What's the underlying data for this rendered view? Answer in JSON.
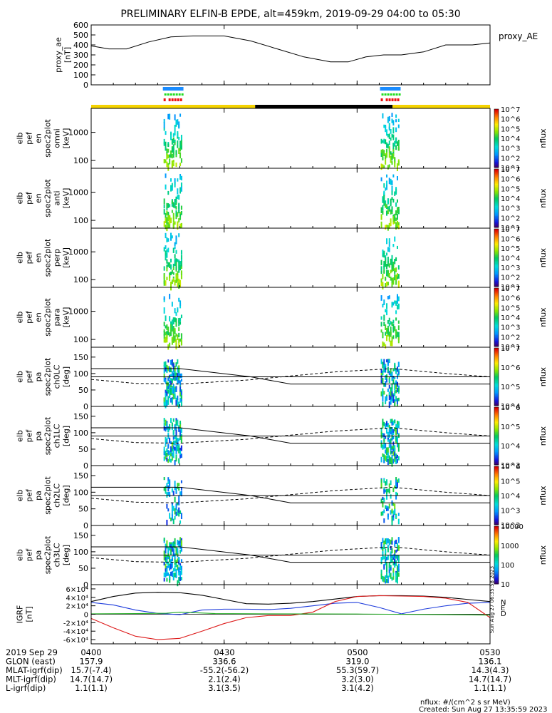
{
  "title": "PRELIMINARY ELFIN-B EPDE, alt=459km, 2019-09-29 04:00 to 05:30",
  "time_axis": {
    "start": "04:00",
    "end": "05:30",
    "tick_labels": [
      "0400",
      "0430",
      "0500",
      "0530"
    ],
    "tick_minutes": [
      0,
      30,
      60,
      90
    ]
  },
  "colors": {
    "flag_blue": "#1a8cff",
    "flag_green": "#22dd22",
    "flag_red": "#ee1111",
    "sunlit": "#f5d300",
    "shadow": "#000000",
    "dipole": "#000000",
    "east": "#1e3cdc",
    "down": "#dd1a1a",
    "north_h": "#22aa22"
  },
  "chart_data": [
    {
      "type": "line",
      "panel": "proxy_ae",
      "ylabel": [
        "proxy_ae",
        "[nT]"
      ],
      "right_label": "proxy_AE",
      "ylim": [
        0,
        600
      ],
      "yticks": [
        0,
        100,
        200,
        300,
        400,
        500,
        600
      ],
      "series": [
        {
          "x": [
            0,
            4,
            8,
            13,
            18,
            23,
            30,
            36,
            42,
            48,
            54,
            58,
            62,
            66,
            70,
            75,
            80,
            86,
            90
          ],
          "values": [
            390,
            360,
            360,
            430,
            480,
            490,
            490,
            440,
            360,
            280,
            230,
            230,
            280,
            300,
            300,
            330,
            400,
            400,
            420
          ]
        }
      ]
    },
    {
      "type": "heatmap",
      "panel": "omni",
      "ylabel": [
        "elb",
        "pef",
        "en",
        "spec2plot",
        "omni",
        "[keV]"
      ],
      "yticks": [
        "1000",
        "100"
      ],
      "colorbar_label": "nflux",
      "colorbar_ticks": [
        "10^1",
        "10^2",
        "10^3",
        "10^4",
        "10^5",
        "10^6",
        "10^7"
      ]
    },
    {
      "type": "heatmap",
      "panel": "anti",
      "ylabel": [
        "elb",
        "pef",
        "en",
        "spec2plot",
        "anti",
        "[keV]"
      ],
      "yticks": [
        "1000",
        "100"
      ],
      "colorbar_label": "nflux",
      "colorbar_ticks": [
        "10^1",
        "10^2",
        "10^3",
        "10^4",
        "10^5",
        "10^6",
        "10^7"
      ]
    },
    {
      "type": "heatmap",
      "panel": "perp",
      "ylabel": [
        "elb",
        "pef",
        "en",
        "spec2plot",
        "perp",
        "[keV]"
      ],
      "yticks": [
        "1000",
        "100"
      ],
      "colorbar_label": "nflux",
      "colorbar_ticks": [
        "10^1",
        "10^2",
        "10^3",
        "10^4",
        "10^5",
        "10^6",
        "10^7"
      ]
    },
    {
      "type": "heatmap",
      "panel": "para",
      "ylabel": [
        "elb",
        "pef",
        "en",
        "spec2plot",
        "para",
        "[keV]"
      ],
      "yticks": [
        "1000",
        "100"
      ],
      "colorbar_label": "nflux",
      "colorbar_ticks": [
        "10^1",
        "10^2",
        "10^3",
        "10^4",
        "10^5",
        "10^6",
        "10^7"
      ]
    },
    {
      "type": "heatmap",
      "panel": "ch0LC",
      "ylabel": [
        "elb",
        "pef",
        "pa",
        "spec2plot",
        "ch0LC",
        "[deg]"
      ],
      "yticks": [
        0,
        50,
        100,
        150
      ],
      "ylim": [
        0,
        180
      ],
      "colorbar_label": "nflux",
      "colorbar_ticks": [
        "10^4",
        "10^5",
        "10^6",
        "10^7"
      ]
    },
    {
      "type": "heatmap",
      "panel": "ch1LC",
      "ylabel": [
        "elb",
        "pef",
        "pa",
        "spec2plot",
        "ch1LC",
        "[deg]"
      ],
      "yticks": [
        0,
        50,
        100,
        150
      ],
      "ylim": [
        0,
        180
      ],
      "colorbar_label": "nflux",
      "colorbar_ticks": [
        "10^3",
        "10^4",
        "10^5",
        "10^6"
      ]
    },
    {
      "type": "heatmap",
      "panel": "ch2LC",
      "ylabel": [
        "elb",
        "pef",
        "pa",
        "spec2plot",
        "ch2LC",
        "[deg]"
      ],
      "yticks": [
        0,
        50,
        100,
        150
      ],
      "ylim": [
        0,
        180
      ],
      "colorbar_label": "nflux",
      "colorbar_ticks": [
        "10^2",
        "10^3",
        "10^4",
        "10^5",
        "10^6"
      ]
    },
    {
      "type": "heatmap",
      "panel": "ch3LC",
      "ylabel": [
        "elb",
        "pef",
        "pa",
        "spec2plot",
        "ch3LC",
        "[deg]"
      ],
      "yticks": [
        0,
        50,
        100,
        150
      ],
      "ylim": [
        0,
        180
      ],
      "colorbar_label": "nflux",
      "colorbar_ticks": [
        "10",
        "100",
        "1000",
        "10000"
      ]
    },
    {
      "type": "line",
      "panel": "igrf",
      "ylabel": [
        "IGRF",
        "[nT]"
      ],
      "ylim": [
        -70000,
        70000
      ],
      "ytick_values": [
        -60000,
        -40000,
        -20000,
        0,
        20000,
        40000,
        60000
      ],
      "ytick_labels": [
        "-6×10⁴",
        "-4×10⁴",
        "-2×10⁴",
        "0",
        "2×10⁴",
        "4×10⁴",
        "6×10⁴"
      ],
      "legend": [
        "N",
        "E",
        "D"
      ],
      "series": [
        {
          "x": [
            0,
            5,
            10,
            15,
            20,
            25,
            30,
            35,
            40,
            45,
            50,
            55,
            60,
            65,
            70,
            75,
            80,
            85,
            90
          ],
          "values": [
            30000,
            42000,
            50000,
            52000,
            51000,
            45000,
            35000,
            25000,
            24000,
            26000,
            30000,
            36000,
            42000,
            44000,
            44000,
            43000,
            40000,
            35000,
            30000
          ]
        },
        {
          "x": [
            0,
            5,
            10,
            15,
            20,
            25,
            30,
            35,
            40,
            45,
            50,
            55,
            60,
            65,
            70,
            75,
            80,
            85,
            90
          ],
          "values": [
            28000,
            22000,
            10000,
            2000,
            -1000,
            10000,
            12000,
            12000,
            11000,
            14000,
            20000,
            26000,
            28000,
            16000,
            1000,
            12000,
            20000,
            26000,
            28000
          ]
        },
        {
          "x": [
            0,
            5,
            10,
            15,
            20,
            25,
            30,
            35,
            40,
            45,
            50,
            55,
            60,
            65,
            70,
            75,
            80,
            85,
            90
          ],
          "values": [
            -10000,
            -32000,
            -52000,
            -60000,
            -57000,
            -40000,
            -22000,
            -8000,
            -3000,
            -3000,
            5000,
            30000,
            42000,
            44000,
            43000,
            42000,
            38000,
            28000,
            -8000
          ]
        },
        {
          "x": [
            0,
            10,
            17,
            20,
            28,
            40,
            60,
            80,
            90
          ],
          "values": [
            1000,
            1500,
            2500,
            5000,
            1500,
            1000,
            500,
            -1000,
            -2000
          ]
        }
      ]
    }
  ],
  "ephemeris": {
    "rows": [
      {
        "label": "2019 Sep 29",
        "values": [
          "0400",
          "0430",
          "0500",
          "0530"
        ]
      },
      {
        "label": "GLON (east)",
        "values": [
          "157.9",
          "336.6",
          "319.0",
          "136.1"
        ]
      },
      {
        "label": "MLAT-igrf(dip)",
        "values": [
          "15.7(-7.4)",
          "-55.2(-56.2)",
          "55.3(59.7)",
          "14.3(4.3)"
        ]
      },
      {
        "label": "MLT-igrf(dip)",
        "values": [
          "14.7(14.7)",
          "2.1(2.4)",
          "3.2(3.0)",
          "14.7(14.7)"
        ]
      },
      {
        "label": "L-igrf(dip)",
        "values": [
          "1.1(1.1)",
          "3.1(3.5)",
          "3.1(4.2)",
          "1.1(1.1)"
        ]
      }
    ]
  },
  "footer": {
    "units": "nflux: #/(cm^2 s sr MeV)",
    "created": "Created: Sun Aug 27 13:35:59 2023",
    "side_stamp": "Sun Aug 27 06:35:58 2023"
  }
}
